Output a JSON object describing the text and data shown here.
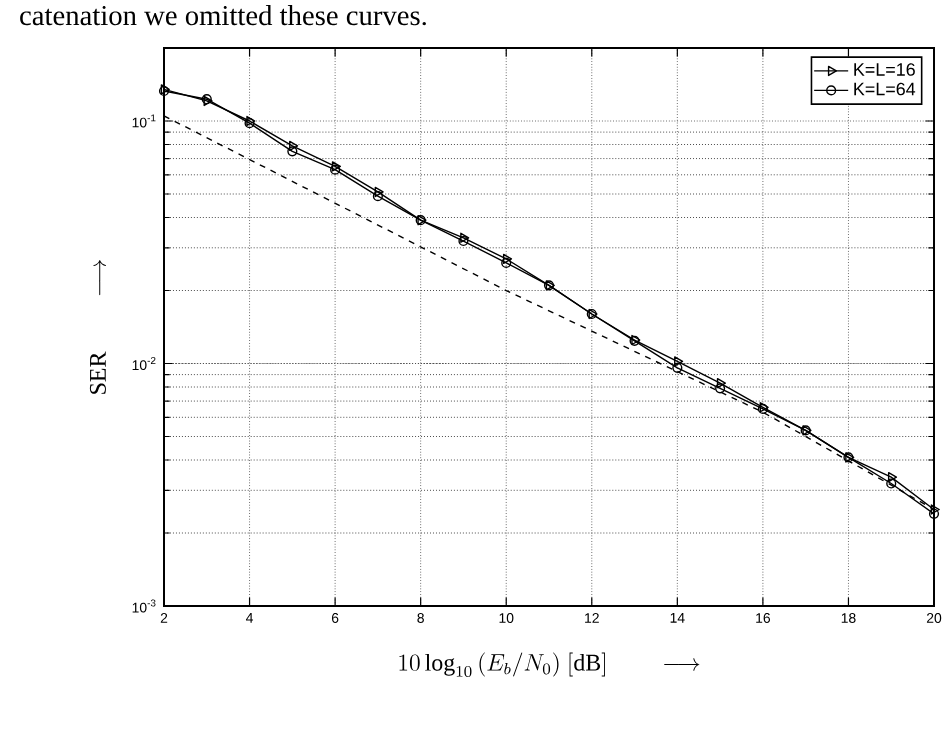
{
  "chart_data": {
    "type": "line",
    "xlabel": "10\\log_{10}\\,(E_b/N_0)\\ [\\mathrm{dB}]\\qquad\\longrightarrow",
    "ylabel": "\\mathrm{SER}\\qquad\\longrightarrow",
    "annotations": [
      "catenation we omitted these curves."
    ],
    "x": [
      2,
      3,
      4,
      5,
      6,
      7,
      8,
      9,
      10,
      11,
      12,
      13,
      14,
      15,
      16,
      17,
      18,
      19,
      20
    ],
    "series": [
      {
        "name": "K=L=16",
        "color": "#000000",
        "marker": "triangle",
        "values": [
          0.135,
          0.121,
          0.1,
          0.079,
          0.065,
          0.051,
          0.039,
          0.033,
          0.027,
          0.021,
          0.016,
          0.0125,
          0.0102,
          0.0083,
          0.0066,
          0.0053,
          0.0041,
          0.0034,
          0.0025
        ]
      },
      {
        "name": "K=L=64",
        "color": "#000000",
        "marker": "circle",
        "values": [
          0.133,
          0.123,
          0.098,
          0.075,
          0.063,
          0.049,
          0.039,
          0.032,
          0.026,
          0.021,
          0.016,
          0.0124,
          0.0096,
          0.0079,
          0.0065,
          0.0053,
          0.0041,
          0.0032,
          0.0024
        ]
      },
      {
        "color": "#000000",
        "marker": "none",
        "line_style": "dashed",
        "x": [
          2,
          10,
          16,
          20
        ],
        "values": [
          0.105,
          0.02,
          0.0063,
          0.0025
        ]
      }
    ],
    "log": "y",
    "xlim": [
      2,
      20
    ],
    "ylim": [
      0.001,
      0.2
    ],
    "xticks": [
      2,
      4,
      6,
      8,
      10,
      12,
      14,
      16,
      18,
      20
    ],
    "yticks": [
      {
        "value": 0.001,
        "label": "10$^{-3}$"
      },
      {
        "value": 0.01,
        "label": "10$^{-2}$"
      },
      {
        "value": 0.1,
        "label": "10$^{-1}$"
      }
    ],
    "grid": true,
    "legend": "top right"
  }
}
